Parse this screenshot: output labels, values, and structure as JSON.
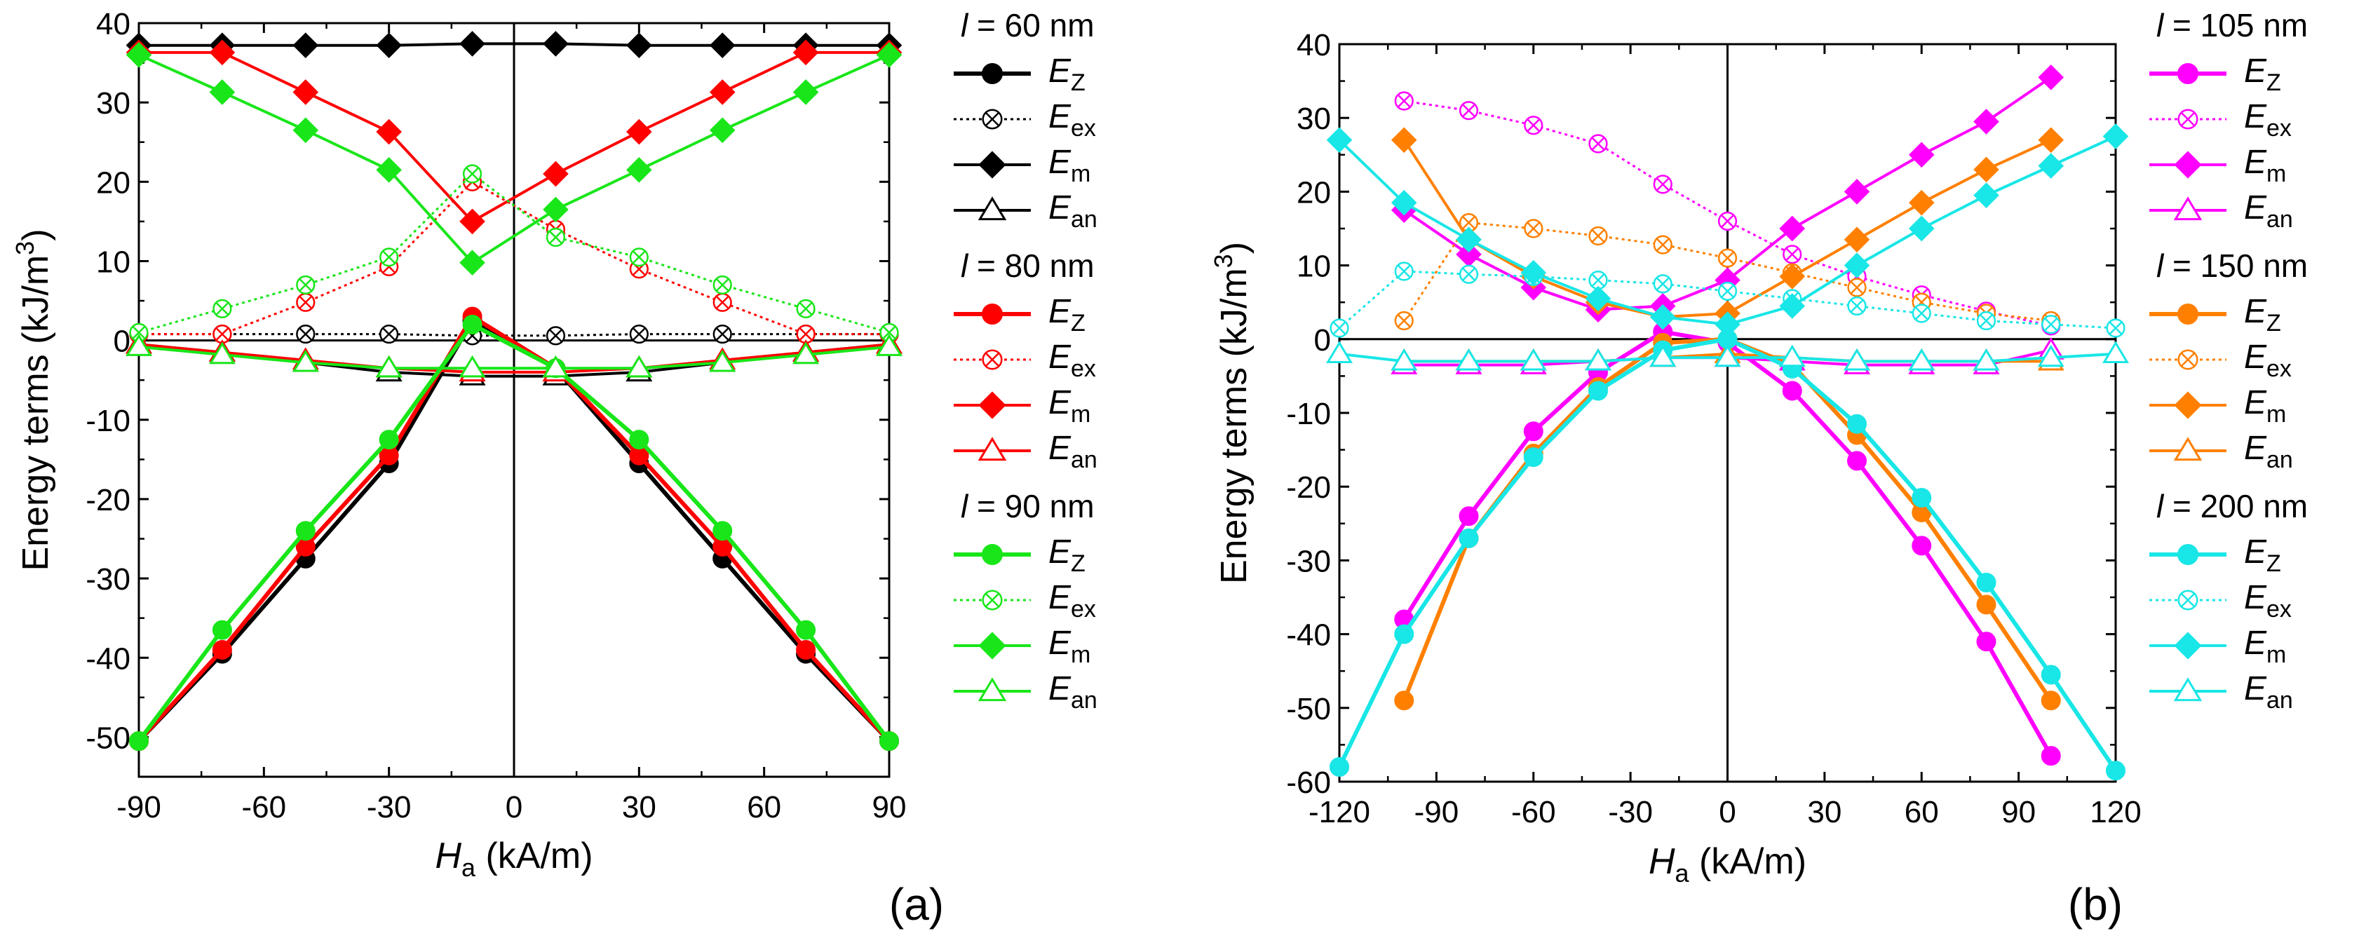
{
  "chart_data": [
    {
      "type": "line",
      "panel_label": "(a)",
      "xlabel_main": "H",
      "xlabel_sub": "a",
      "xlabel_rest": " (kA/m)",
      "ylabel_main": "Energy terms (kJ/m",
      "ylabel_sup": "3",
      "ylabel_end": ")",
      "xlim": [
        -90,
        90
      ],
      "ylim": [
        -55,
        40
      ],
      "xticks": [
        -90,
        -60,
        -30,
        0,
        30,
        60,
        90
      ],
      "yticks": [
        -50,
        -40,
        -30,
        -20,
        -10,
        0,
        10,
        20,
        30,
        40
      ],
      "grid": false,
      "legend_position": "right",
      "groups": [
        {
          "title_var": "l",
          "title_value": " = 60 nm",
          "color": "#000000",
          "series": [
            {
              "name": "EZ",
              "sym": "E",
              "sub": "Z",
              "marker": "circle",
              "style": "solid",
              "x": [
                -90,
                -70,
                -50,
                -30,
                -10,
                10,
                30,
                50,
                70,
                90
              ],
              "y": [
                -50.5,
                -39.5,
                -27.5,
                -15.5,
                2.5,
                -3.5,
                -15.5,
                -27.5,
                -39.5,
                -50.5
              ]
            },
            {
              "name": "Eex",
              "sym": "E",
              "sub": "ex",
              "marker": "circle-x",
              "style": "dotted",
              "x": [
                -90,
                -70,
                -50,
                -30,
                -10,
                10,
                30,
                50,
                70,
                90
              ],
              "y": [
                0.8,
                0.8,
                0.8,
                0.8,
                0.6,
                0.6,
                0.8,
                0.8,
                0.8,
                0.8
              ]
            },
            {
              "name": "Em",
              "sym": "E",
              "sub": "m",
              "marker": "diamond",
              "style": "solid",
              "x": [
                -90,
                -70,
                -50,
                -30,
                -10,
                10,
                30,
                50,
                70,
                90
              ],
              "y": [
                37.2,
                37.2,
                37.2,
                37.2,
                37.4,
                37.4,
                37.2,
                37.2,
                37.2,
                37.2
              ]
            },
            {
              "name": "Ean",
              "sym": "E",
              "sub": "an",
              "marker": "triangle",
              "style": "solid",
              "x": [
                -90,
                -70,
                -50,
                -30,
                -10,
                10,
                30,
                50,
                70,
                90
              ],
              "y": [
                -0.5,
                -1.5,
                -2.8,
                -4.0,
                -4.5,
                -4.5,
                -4.0,
                -2.8,
                -1.5,
                -0.5
              ]
            }
          ]
        },
        {
          "title_var": "l",
          "title_value": " = 80 nm",
          "color": "#ff0000",
          "series": [
            {
              "name": "EZ",
              "sym": "E",
              "sub": "Z",
              "marker": "circle",
              "style": "solid",
              "x": [
                -90,
                -70,
                -50,
                -30,
                -10,
                10,
                30,
                50,
                70,
                90
              ],
              "y": [
                -50.5,
                -39,
                -26,
                -14.5,
                3,
                -3.5,
                -14.5,
                -26,
                -39,
                -50.5
              ]
            },
            {
              "name": "Eex",
              "sym": "E",
              "sub": "ex",
              "marker": "circle-x",
              "style": "dotted",
              "x": [
                -90,
                -70,
                -50,
                -30,
                -10,
                10,
                30,
                50,
                70,
                90
              ],
              "y": [
                0.8,
                0.8,
                4.8,
                9.3,
                20,
                14,
                9,
                4.8,
                0.8,
                0.8
              ]
            },
            {
              "name": "Em",
              "sym": "E",
              "sub": "m",
              "marker": "diamond",
              "style": "solid",
              "x": [
                -90,
                -70,
                -50,
                -30,
                -10,
                10,
                30,
                50,
                70,
                90
              ],
              "y": [
                36.3,
                36.3,
                31.3,
                26.3,
                15,
                21,
                26.3,
                31.3,
                36.3,
                36.3
              ]
            },
            {
              "name": "Ean",
              "sym": "E",
              "sub": "an",
              "marker": "triangle",
              "style": "solid",
              "x": [
                -90,
                -70,
                -50,
                -30,
                -10,
                10,
                30,
                50,
                70,
                90
              ],
              "y": [
                -0.5,
                -1.5,
                -2.5,
                -3.5,
                -4.0,
                -4.0,
                -3.5,
                -2.5,
                -1.5,
                -0.5
              ]
            }
          ]
        },
        {
          "title_var": "l",
          "title_value": " = 90 nm",
          "color": "#19e619",
          "series": [
            {
              "name": "EZ",
              "sym": "E",
              "sub": "Z",
              "marker": "circle",
              "style": "solid",
              "x": [
                -90,
                -70,
                -50,
                -30,
                -10,
                10,
                30,
                50,
                70,
                90
              ],
              "y": [
                -50.5,
                -36.5,
                -24,
                -12.5,
                2,
                -3.5,
                -12.5,
                -24,
                -36.5,
                -50.5
              ]
            },
            {
              "name": "Eex",
              "sym": "E",
              "sub": "ex",
              "marker": "circle-x",
              "style": "dotted",
              "x": [
                -90,
                -70,
                -50,
                -30,
                -10,
                10,
                30,
                50,
                70,
                90
              ],
              "y": [
                1,
                4,
                7,
                10.5,
                21,
                13,
                10.5,
                7,
                4,
                1
              ]
            },
            {
              "name": "Em",
              "sym": "E",
              "sub": "m",
              "marker": "diamond",
              "style": "solid",
              "x": [
                -90,
                -70,
                -50,
                -30,
                -10,
                10,
                30,
                50,
                70,
                90
              ],
              "y": [
                36,
                31.3,
                26.5,
                21.5,
                9.8,
                16.5,
                21.5,
                26.5,
                31.3,
                36
              ]
            },
            {
              "name": "Ean",
              "sym": "E",
              "sub": "an",
              "marker": "triangle",
              "style": "solid",
              "x": [
                -90,
                -70,
                -50,
                -30,
                -10,
                10,
                30,
                50,
                70,
                90
              ],
              "y": [
                -0.8,
                -1.8,
                -2.8,
                -3.5,
                -3.5,
                -3.5,
                -3.5,
                -2.8,
                -1.8,
                -0.8
              ]
            }
          ]
        }
      ]
    },
    {
      "type": "line",
      "panel_label": "(b)",
      "xlabel_main": "H",
      "xlabel_sub": "a",
      "xlabel_rest": " (kA/m)",
      "ylabel_main": "Energy terms (kJ/m",
      "ylabel_sup": "3",
      "ylabel_end": ")",
      "xlim": [
        -120,
        120
      ],
      "ylim": [
        -60,
        40
      ],
      "xticks": [
        -120,
        -90,
        -60,
        -30,
        0,
        30,
        60,
        90,
        120
      ],
      "yticks": [
        -60,
        -50,
        -40,
        -30,
        -20,
        -10,
        0,
        10,
        20,
        30,
        40
      ],
      "grid": false,
      "legend_position": "right",
      "groups": [
        {
          "title_var": "l",
          "title_value": " = 105 nm",
          "color": "#ff00ff",
          "series": [
            {
              "name": "EZ",
              "sym": "E",
              "sub": "Z",
              "marker": "circle",
              "style": "solid",
              "x": [
                -100,
                -80,
                -60,
                -40,
                -20,
                0,
                20,
                40,
                60,
                80,
                100
              ],
              "y": [
                -38,
                -24,
                -12.5,
                -4.5,
                1,
                -0.5,
                -7,
                -16.5,
                -28,
                -41,
                -56.5
              ]
            },
            {
              "name": "Eex",
              "sym": "E",
              "sub": "ex",
              "marker": "circle-x",
              "style": "dotted",
              "x": [
                -100,
                -80,
                -60,
                -40,
                -20,
                0,
                20,
                40,
                60,
                80,
                100
              ],
              "y": [
                32.3,
                31,
                29,
                26.5,
                21,
                16,
                11.5,
                8.5,
                6,
                3.8,
                1.8
              ]
            },
            {
              "name": "Em",
              "sym": "E",
              "sub": "m",
              "marker": "diamond",
              "style": "solid",
              "x": [
                -100,
                -80,
                -60,
                -40,
                -20,
                0,
                20,
                40,
                60,
                80,
                100
              ],
              "y": [
                17.5,
                11.5,
                7,
                4,
                4.5,
                8,
                15,
                20,
                25,
                29.5,
                35.5
              ]
            },
            {
              "name": "Ean",
              "sym": "E",
              "sub": "an",
              "marker": "triangle",
              "style": "solid",
              "x": [
                -100,
                -80,
                -60,
                -40,
                -20,
                0,
                20,
                40,
                60,
                80,
                100
              ],
              "y": [
                -3.5,
                -3.5,
                -3.5,
                -3,
                -2.5,
                -2.5,
                -3,
                -3.5,
                -3.5,
                -3.5,
                -1.5
              ]
            }
          ]
        },
        {
          "title_var": "l",
          "title_value": " = 150 nm",
          "color": "#ff8000",
          "series": [
            {
              "name": "EZ",
              "sym": "E",
              "sub": "Z",
              "marker": "circle",
              "style": "solid",
              "x": [
                -100,
                -80,
                -60,
                -40,
                -20,
                0,
                20,
                40,
                60,
                80,
                100
              ],
              "y": [
                -49,
                -27,
                -15.5,
                -6.5,
                -0.5,
                0,
                -3.5,
                -13,
                -23.5,
                -36,
                -49
              ]
            },
            {
              "name": "Eex",
              "sym": "E",
              "sub": "ex",
              "marker": "circle-x",
              "style": "dotted",
              "x": [
                -100,
                -80,
                -60,
                -40,
                -20,
                0,
                20,
                40,
                60,
                80,
                100
              ],
              "y": [
                2.5,
                15.8,
                15,
                14,
                12.8,
                11,
                9,
                7,
                5,
                3.5,
                2.5
              ]
            },
            {
              "name": "Em",
              "sym": "E",
              "sub": "m",
              "marker": "diamond",
              "style": "solid",
              "x": [
                -100,
                -80,
                -60,
                -40,
                -20,
                0,
                20,
                40,
                60,
                80,
                100
              ],
              "y": [
                27,
                13.5,
                8.5,
                5,
                3,
                3.5,
                8.5,
                13.5,
                18.5,
                23,
                27
              ]
            },
            {
              "name": "Ean",
              "sym": "E",
              "sub": "an",
              "marker": "triangle",
              "style": "solid",
              "x": [
                -100,
                -80,
                -60,
                -40,
                -20,
                0,
                20,
                40,
                60,
                80,
                100
              ],
              "y": [
                -3,
                -3,
                -3,
                -3,
                -2.5,
                -2,
                -2.5,
                -3,
                -3,
                -3,
                -3
              ]
            }
          ]
        },
        {
          "title_var": "l",
          "title_value": " = 200 nm",
          "color": "#19e6e6",
          "series": [
            {
              "name": "EZ",
              "sym": "E",
              "sub": "Z",
              "marker": "circle",
              "style": "solid",
              "x": [
                -120,
                -100,
                -80,
                -60,
                -40,
                -20,
                0,
                20,
                40,
                60,
                80,
                100,
                120
              ],
              "y": [
                -58,
                -40,
                -27,
                -16,
                -7,
                -1.5,
                0,
                -4,
                -11.5,
                -21.5,
                -33,
                -45.5,
                -58.5
              ]
            },
            {
              "name": "Eex",
              "sym": "E",
              "sub": "ex",
              "marker": "circle-x",
              "style": "dotted",
              "x": [
                -120,
                -100,
                -80,
                -60,
                -40,
                -20,
                0,
                20,
                40,
                60,
                80,
                100,
                120
              ],
              "y": [
                1.5,
                9.2,
                8.8,
                8.5,
                8,
                7.5,
                6.5,
                5.5,
                4.5,
                3.5,
                2.5,
                2,
                1.5
              ]
            },
            {
              "name": "Em",
              "sym": "E",
              "sub": "m",
              "marker": "diamond",
              "style": "solid",
              "x": [
                -120,
                -100,
                -80,
                -60,
                -40,
                -20,
                0,
                20,
                40,
                60,
                80,
                100,
                120
              ],
              "y": [
                27,
                18.5,
                13.5,
                9,
                5.5,
                3,
                2,
                4.5,
                10,
                15,
                19.5,
                23.5,
                27.5
              ]
            },
            {
              "name": "Ean",
              "sym": "E",
              "sub": "an",
              "marker": "triangle",
              "style": "solid",
              "x": [
                -120,
                -100,
                -80,
                -60,
                -40,
                -20,
                0,
                20,
                40,
                60,
                80,
                100,
                120
              ],
              "y": [
                -2,
                -3,
                -3,
                -3,
                -3,
                -2.5,
                -2.5,
                -2.5,
                -3,
                -3,
                -3,
                -2.5,
                -2
              ]
            }
          ]
        }
      ]
    }
  ]
}
